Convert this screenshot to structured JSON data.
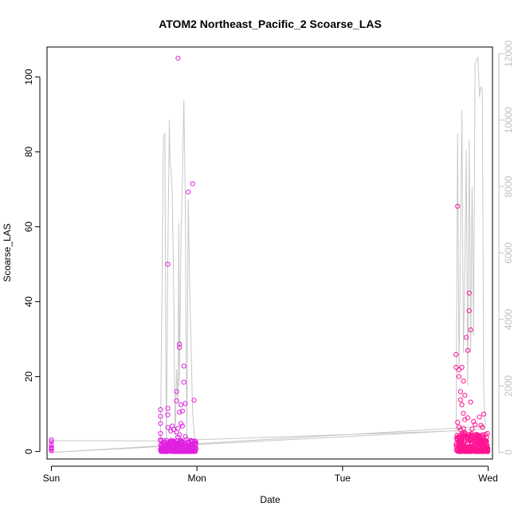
{
  "chart_data": {
    "type": "scatter",
    "title": "ATOM2 Northeast_Pacific_2 Scoarse_LAS",
    "xlabel": "Date",
    "ylabel": "Scoarse_LAS",
    "x_ticks": [
      "Sun",
      "Mon",
      "Tue",
      "Wed"
    ],
    "xlim": [
      -0.03,
      3.03
    ],
    "ylim": [
      -2,
      108
    ],
    "y_ticks": [
      0,
      20,
      40,
      60,
      80,
      100
    ],
    "y2_ticks": [
      0,
      2000,
      4000,
      6000,
      8000,
      10000,
      12000
    ],
    "y2lim": [
      -200,
      12200
    ],
    "grid": false,
    "legend": "none",
    "colors": {
      "points_early": "#e020e0",
      "points_late": "#ff1493",
      "line": "#c8c8c8"
    },
    "series": [
      {
        "values_axis": "left",
        "points": [
          [
            0.0,
            0.2
          ],
          [
            0.0,
            0.6
          ],
          [
            0.0,
            1.1
          ],
          [
            0.0,
            1.8
          ],
          [
            0.0,
            2.6
          ],
          [
            0.0,
            3.1
          ],
          [
            0.0,
            0.9
          ],
          [
            0.75,
            11.2
          ],
          [
            0.75,
            9.4
          ],
          [
            0.75,
            7.5
          ],
          [
            0.75,
            4.8
          ],
          [
            0.75,
            3.2
          ],
          [
            0.76,
            2.1
          ],
          [
            0.78,
            0.5
          ],
          [
            0.8,
            11.5
          ],
          [
            0.8,
            9.8
          ],
          [
            0.8,
            6.4
          ],
          [
            0.8,
            50.0
          ],
          [
            0.82,
            5.5
          ],
          [
            0.83,
            6.8
          ],
          [
            0.84,
            5.9
          ],
          [
            0.86,
            16.0
          ],
          [
            0.86,
            13.5
          ],
          [
            0.87,
            105.0
          ],
          [
            0.87,
            6.2
          ],
          [
            0.88,
            28.7
          ],
          [
            0.88,
            27.8
          ],
          [
            0.88,
            10.5
          ],
          [
            0.89,
            12.5
          ],
          [
            0.89,
            7.5
          ],
          [
            0.9,
            10.8
          ],
          [
            0.9,
            6.8
          ],
          [
            0.91,
            18.5
          ],
          [
            0.91,
            22.8
          ],
          [
            0.92,
            12.8
          ],
          [
            0.92,
            4.0
          ],
          [
            0.93,
            3.2
          ],
          [
            0.94,
            69.3
          ],
          [
            0.96,
            2.0
          ],
          [
            0.97,
            71.5
          ],
          [
            0.98,
            13.7
          ],
          [
            0.99,
            2.7
          ],
          [
            0.86,
            5.2
          ],
          [
            0.87,
            3.8
          ],
          [
            0.88,
            4.5
          ],
          [
            0.89,
            3.0
          ],
          [
            0.9,
            2.5
          ],
          [
            0.85,
            2.2
          ],
          [
            0.84,
            1.5
          ],
          [
            2.78,
            25.9
          ],
          [
            2.78,
            22.5
          ],
          [
            2.79,
            65.5
          ],
          [
            2.8,
            21.8
          ],
          [
            2.8,
            20.0
          ],
          [
            2.81,
            16.0
          ],
          [
            2.81,
            13.8
          ],
          [
            2.82,
            12.5
          ],
          [
            2.82,
            22.5
          ],
          [
            2.83,
            18.8
          ],
          [
            2.83,
            10.2
          ],
          [
            2.84,
            15.0
          ],
          [
            2.84,
            8.5
          ],
          [
            2.85,
            30.5
          ],
          [
            2.86,
            27.0
          ],
          [
            2.86,
            9.0
          ],
          [
            2.87,
            42.3
          ],
          [
            2.87,
            37.6
          ],
          [
            2.88,
            32.5
          ],
          [
            2.88,
            13.2
          ],
          [
            2.89,
            6.0
          ],
          [
            2.9,
            8.0
          ],
          [
            2.91,
            7.2
          ],
          [
            2.92,
            3.8
          ],
          [
            2.93,
            3.2
          ],
          [
            2.94,
            9.2
          ],
          [
            2.95,
            7.0
          ],
          [
            2.96,
            6.5
          ],
          [
            2.97,
            10.0
          ],
          [
            2.98,
            2.8
          ],
          [
            2.99,
            1.2
          ],
          [
            2.79,
            7.8
          ],
          [
            2.8,
            6.5
          ],
          [
            2.81,
            5.8
          ],
          [
            2.82,
            4.8
          ],
          [
            2.83,
            6.2
          ],
          [
            2.84,
            5.0
          ],
          [
            2.85,
            4.2
          ],
          [
            2.86,
            3.5
          ],
          [
            2.87,
            4.6
          ],
          [
            2.88,
            2.9
          ],
          [
            2.89,
            3.3
          ]
        ],
        "dense_bands": [
          {
            "x_from": 0.75,
            "x_to": 1.0,
            "y_from": 0,
            "y_to": 3
          },
          {
            "x_from": 2.78,
            "x_to": 3.0,
            "y_from": 0,
            "y_to": 5
          }
        ]
      },
      {
        "values_axis": "right",
        "line": [
          [
            0.0,
            0
          ],
          [
            0.0,
            350
          ],
          [
            0.75,
            350
          ],
          [
            0.75,
            650
          ],
          [
            0.76,
            5000
          ],
          [
            0.77,
            9500
          ],
          [
            0.78,
            9600
          ],
          [
            0.785,
            3800
          ],
          [
            0.79,
            200
          ],
          [
            0.8,
            6000
          ],
          [
            0.81,
            10000
          ],
          [
            0.815,
            8600
          ],
          [
            0.82,
            8600
          ],
          [
            0.83,
            7900
          ],
          [
            0.84,
            5000
          ],
          [
            0.85,
            300
          ],
          [
            0.86,
            2500
          ],
          [
            0.87,
            1500
          ],
          [
            0.875,
            6900
          ],
          [
            0.88,
            2000
          ],
          [
            0.89,
            6400
          ],
          [
            0.9,
            8200
          ],
          [
            0.91,
            10600
          ],
          [
            0.92,
            7600
          ],
          [
            0.93,
            200
          ],
          [
            0.94,
            7600
          ],
          [
            0.95,
            5000
          ],
          [
            0.96,
            3100
          ],
          [
            0.97,
            1200
          ],
          [
            0.98,
            600
          ],
          [
            0.99,
            300
          ],
          [
            1.0,
            380
          ],
          [
            2.78,
            650
          ],
          [
            2.78,
            400
          ],
          [
            2.79,
            9600
          ],
          [
            2.8,
            2500
          ],
          [
            2.81,
            6000
          ],
          [
            2.82,
            10300
          ],
          [
            2.83,
            3000
          ],
          [
            2.84,
            5500
          ],
          [
            2.85,
            9100
          ],
          [
            2.86,
            2000
          ],
          [
            2.87,
            9400
          ],
          [
            2.88,
            3000
          ],
          [
            2.89,
            8000
          ],
          [
            2.9,
            3500
          ],
          [
            2.91,
            11700
          ],
          [
            2.93,
            11900
          ],
          [
            2.94,
            10700
          ],
          [
            2.95,
            11000
          ],
          [
            2.96,
            10900
          ],
          [
            2.97,
            1800
          ],
          [
            2.98,
            700
          ],
          [
            0.0,
            0
          ],
          [
            2.97,
            780
          ]
        ]
      }
    ]
  }
}
